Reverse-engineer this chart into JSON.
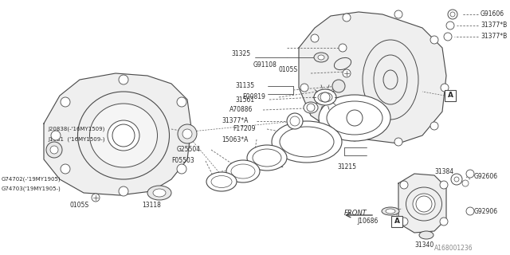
{
  "bg_color": "#ffffff",
  "line_color": "#4a4a4a",
  "text_color": "#2a2a2a",
  "catalog_number": "A168001236",
  "figsize": [
    6.4,
    3.2
  ],
  "dpi": 100,
  "xlim": [
    0,
    640
  ],
  "ylim": [
    0,
    320
  ]
}
